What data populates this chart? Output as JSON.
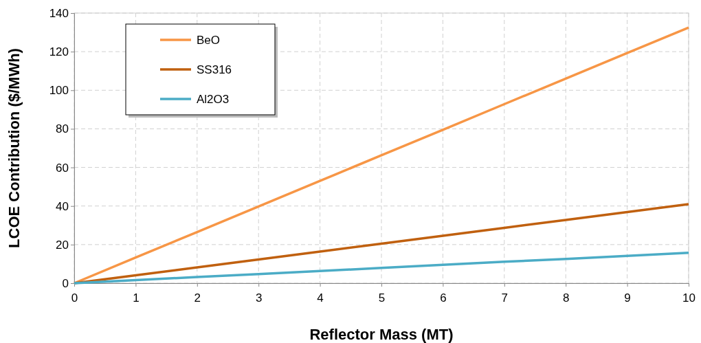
{
  "chart_data": {
    "type": "line",
    "xlabel": "Reflector Mass (MT)",
    "ylabel": "LCOE Contribution  ($/MWh)",
    "x": [
      0,
      1,
      2,
      3,
      4,
      5,
      6,
      7,
      8,
      9,
      10
    ],
    "series": [
      {
        "name": "BeO",
        "color": "#f79646",
        "values": [
          0,
          13.3,
          26.5,
          39.8,
          53,
          66.3,
          79.5,
          92.8,
          106,
          119.3,
          132.5
        ]
      },
      {
        "name": "SS316",
        "color": "#c0600f",
        "values": [
          0,
          4.1,
          8.2,
          12.3,
          16.4,
          20.5,
          24.6,
          28.7,
          32.8,
          36.9,
          41
        ]
      },
      {
        "name": "Al2O3",
        "color": "#4bacc6",
        "values": [
          0,
          1.6,
          3.2,
          4.7,
          6.3,
          7.9,
          9.5,
          11.1,
          12.6,
          14.2,
          15.8
        ]
      }
    ],
    "xlim": [
      0,
      10
    ],
    "xticks": [
      0,
      1,
      2,
      3,
      4,
      5,
      6,
      7,
      8,
      9,
      10
    ],
    "ylim": [
      0,
      140
    ],
    "yticks": [
      0,
      20,
      40,
      60,
      80,
      100,
      120,
      140
    ],
    "grid": true,
    "legend": "top left",
    "line_style": "solid",
    "marker": "none"
  }
}
